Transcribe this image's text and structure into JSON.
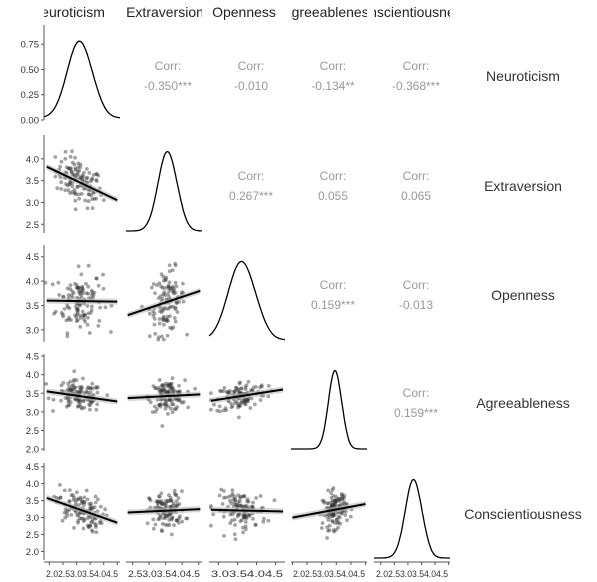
{
  "chart_data": {
    "type": "scatter",
    "title": "",
    "variables": [
      "Neuroticism",
      "Extraversion",
      "Openness",
      "Agreeableness",
      "Conscientiousness"
    ],
    "column_headers": [
      "Neuroticism",
      "Extraversion",
      "Openness",
      "Agreeableness",
      "Conscientiousness"
    ],
    "row_labels": [
      "Neuroticism",
      "Extraversion",
      "Openness",
      "Agreeableness",
      "Conscientiousness"
    ],
    "x_axes": [
      {
        "variable": "Neuroticism",
        "range": [
          1.8,
          4.6
        ],
        "ticks": [
          2.0,
          2.5,
          3.0,
          3.5,
          4.0,
          4.5
        ],
        "tick_text": "2.02.53.03.54.04.5"
      },
      {
        "variable": "Extraversion",
        "range": [
          2.3,
          4.6
        ],
        "ticks": [
          2.5,
          3.0,
          3.5,
          4.0,
          4.5
        ],
        "tick_text": "2.53.03.54.04.5"
      },
      {
        "variable": "Openness",
        "range": [
          2.75,
          4.75
        ],
        "ticks": [
          3.0,
          3.5,
          4.0,
          4.5
        ],
        "tick_text": "3.03.54.04.5"
      },
      {
        "variable": "Agreeableness",
        "range": [
          1.95,
          4.55
        ],
        "ticks": [
          2.0,
          2.5,
          3.0,
          3.5,
          4.0,
          4.5
        ],
        "tick_text": "2.02.53.03.54.04.5"
      },
      {
        "variable": "Conscientiousness",
        "range": [
          1.75,
          4.55
        ],
        "ticks": [
          2.0,
          2.5,
          3.0,
          3.5,
          4.0,
          4.5
        ],
        "tick_text": "2.02.53.03.54.04.5"
      }
    ],
    "y_axes": [
      {
        "variable": "Neuroticism density",
        "range": [
          0,
          0.92
        ],
        "ticks": [
          "0.00",
          "0.25",
          "0.50",
          "0.75"
        ]
      },
      {
        "variable": "Extraversion",
        "range": [
          2.3,
          4.5
        ],
        "ticks": [
          "2.5",
          "3.0",
          "3.5",
          "4.0"
        ]
      },
      {
        "variable": "Openness",
        "range": [
          2.75,
          4.7
        ],
        "ticks": [
          "3.0",
          "3.5",
          "4.0",
          "4.5"
        ]
      },
      {
        "variable": "Agreeableness",
        "range": [
          1.95,
          4.5
        ],
        "ticks": [
          "2.0",
          "2.5",
          "3.0",
          "3.5",
          "4.0",
          "4.5"
        ]
      },
      {
        "variable": "Conscientiousness",
        "range": [
          1.75,
          4.55
        ],
        "ticks": [
          "2.0",
          "2.5",
          "3.0",
          "3.5",
          "4.0",
          "4.5"
        ]
      }
    ],
    "correlations": [
      {
        "row": 0,
        "col": 1,
        "label": "Corr:",
        "value": "-0.350***"
      },
      {
        "row": 0,
        "col": 2,
        "label": "Corr:",
        "value": "-0.010"
      },
      {
        "row": 0,
        "col": 3,
        "label": "Corr:",
        "value": "-0.134**"
      },
      {
        "row": 0,
        "col": 4,
        "label": "Corr:",
        "value": "-0.368***"
      },
      {
        "row": 1,
        "col": 2,
        "label": "Corr:",
        "value": "0.267***"
      },
      {
        "row": 1,
        "col": 3,
        "label": "Corr:",
        "value": "0.055"
      },
      {
        "row": 1,
        "col": 4,
        "label": "Corr:",
        "value": "0.065"
      },
      {
        "row": 2,
        "col": 3,
        "label": "Corr:",
        "value": "0.159***"
      },
      {
        "row": 2,
        "col": 4,
        "label": "Corr:",
        "value": "-0.013"
      },
      {
        "row": 3,
        "col": 4,
        "label": "Corr:",
        "value": "0.159***"
      }
    ],
    "densities": [
      {
        "variable": "Neuroticism",
        "mean": 3.1,
        "sd": 0.45,
        "peak_density": 0.88
      },
      {
        "variable": "Extraversion",
        "mean": 3.55,
        "sd": 0.28
      },
      {
        "variable": "Openness",
        "mean": 3.6,
        "sd": 0.35
      },
      {
        "variable": "Agreeableness",
        "mean": 3.45,
        "sd": 0.22
      },
      {
        "variable": "Conscientiousness",
        "mean": 3.2,
        "sd": 0.3
      }
    ],
    "regression_lines": [
      {
        "row": 1,
        "col": 0,
        "x": [
          1.9,
          4.5
        ],
        "y": [
          3.82,
          3.05
        ]
      },
      {
        "row": 2,
        "col": 0,
        "x": [
          1.9,
          4.5
        ],
        "y": [
          3.6,
          3.58
        ]
      },
      {
        "row": 2,
        "col": 1,
        "x": [
          2.35,
          4.55
        ],
        "y": [
          3.3,
          3.8
        ]
      },
      {
        "row": 3,
        "col": 0,
        "x": [
          1.9,
          4.5
        ],
        "y": [
          3.55,
          3.28
        ]
      },
      {
        "row": 3,
        "col": 1,
        "x": [
          2.35,
          4.55
        ],
        "y": [
          3.37,
          3.47
        ]
      },
      {
        "row": 3,
        "col": 2,
        "x": [
          2.8,
          4.7
        ],
        "y": [
          3.3,
          3.6
        ]
      },
      {
        "row": 4,
        "col": 0,
        "x": [
          1.9,
          4.5
        ],
        "y": [
          3.58,
          2.85
        ]
      },
      {
        "row": 4,
        "col": 1,
        "x": [
          2.35,
          4.55
        ],
        "y": [
          3.15,
          3.25
        ]
      },
      {
        "row": 4,
        "col": 2,
        "x": [
          2.8,
          4.7
        ],
        "y": [
          3.23,
          3.18
        ]
      },
      {
        "row": 4,
        "col": 3,
        "x": [
          2.0,
          4.5
        ],
        "y": [
          3.0,
          3.4
        ]
      }
    ],
    "point_count": 120,
    "colors": {
      "points": "#333333",
      "lines": "#000000",
      "corr_text": "#999999",
      "labels": "#333333",
      "axis": "#555555"
    }
  }
}
